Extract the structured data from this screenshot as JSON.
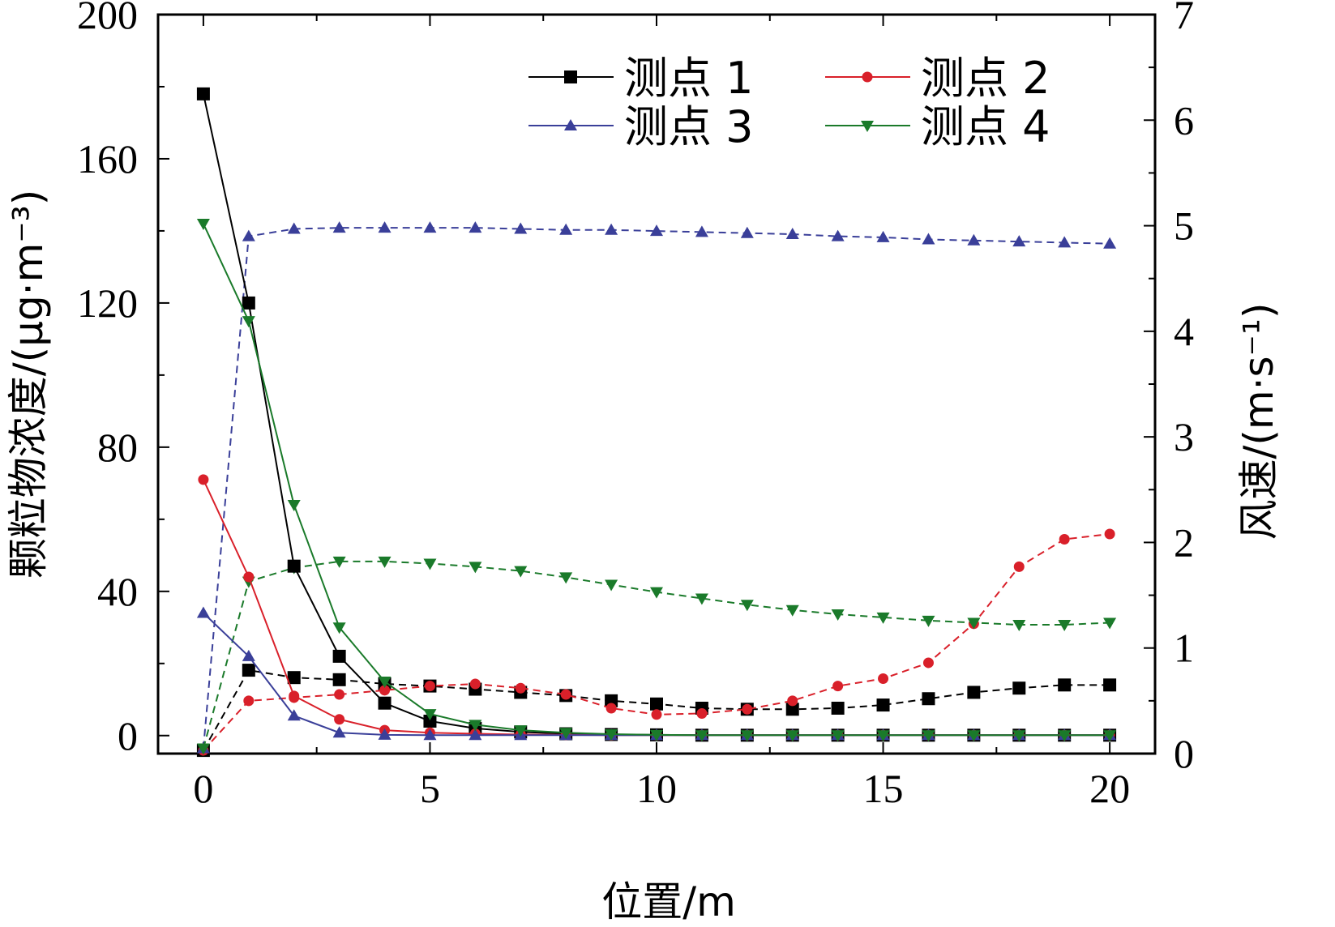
{
  "chart_data": {
    "type": "line",
    "xlabel": "位置/m",
    "ylabel_left": "颗粒物浓度/(μg·m⁻³)",
    "ylabel_right": "风速/(m·s⁻¹)",
    "xlim": [
      -1,
      21
    ],
    "ylim_left": [
      -5,
      200
    ],
    "ylim_right": [
      0,
      7
    ],
    "x_ticks": [
      0,
      5,
      10,
      15,
      20
    ],
    "y_left_ticks": [
      0,
      40,
      80,
      120,
      160,
      200
    ],
    "y_right_ticks": [
      0,
      1,
      2,
      3,
      4,
      5,
      6,
      7
    ],
    "legend_position": "top-right",
    "legend": [
      {
        "name": "测点 1",
        "color": "#000000",
        "marker": "square"
      },
      {
        "name": "测点 2",
        "color": "#d9202a",
        "marker": "circle"
      },
      {
        "name": "测点 3",
        "color": "#3a3f99",
        "marker": "triangle-up"
      },
      {
        "name": "测点 4",
        "color": "#1a7a2a",
        "marker": "triangle-down"
      }
    ],
    "x": [
      0,
      1,
      2,
      3,
      4,
      5,
      6,
      7,
      8,
      9,
      10,
      11,
      12,
      13,
      14,
      15,
      16,
      17,
      18,
      19,
      20
    ],
    "series": [
      {
        "name": "测点 1",
        "axis": "left",
        "style": "solid",
        "color": "#000000",
        "marker": "square",
        "values": [
          178,
          120,
          47,
          22,
          9,
          4,
          2,
          1,
          0.5,
          0.3,
          0.2,
          0.1,
          0.1,
          0.1,
          0.1,
          0.1,
          0.1,
          0.1,
          0.1,
          0.1,
          0.1
        ]
      },
      {
        "name": "测点 2",
        "axis": "left",
        "style": "solid",
        "color": "#d9202a",
        "marker": "circle",
        "values": [
          71,
          44,
          11,
          4.5,
          1.5,
          0.8,
          0.5,
          0.3,
          0.2,
          0.1,
          0.1,
          0.1,
          0.1,
          0.1,
          0.1,
          0.1,
          0.1,
          0.1,
          0.1,
          0.1,
          0.1
        ]
      },
      {
        "name": "测点 3",
        "axis": "left",
        "style": "solid",
        "color": "#3a3f99",
        "marker": "triangle-up",
        "values": [
          34,
          22,
          5.5,
          0.8,
          0.2,
          0.1,
          0.1,
          0.1,
          0.1,
          0.1,
          0.1,
          0.1,
          0.1,
          0.1,
          0.1,
          0.1,
          0.1,
          0.1,
          0.1,
          0.1,
          0.1
        ]
      },
      {
        "name": "测点 4",
        "axis": "left",
        "style": "solid",
        "color": "#1a7a2a",
        "marker": "triangle-down",
        "values": [
          142,
          115,
          64,
          30,
          15,
          6,
          3,
          1.5,
          0.8,
          0.4,
          0.2,
          0.1,
          0.1,
          0.1,
          0.1,
          0.1,
          0.1,
          0.1,
          0.1,
          0.1,
          0.1
        ]
      },
      {
        "name": "测点 1",
        "axis": "right",
        "style": "dashed",
        "color": "#000000",
        "marker": "square",
        "values": [
          0.03,
          0.79,
          0.72,
          0.7,
          0.66,
          0.64,
          0.61,
          0.58,
          0.55,
          0.5,
          0.47,
          0.43,
          0.42,
          0.42,
          0.43,
          0.46,
          0.52,
          0.58,
          0.62,
          0.65,
          0.65
        ]
      },
      {
        "name": "测点 2",
        "axis": "right",
        "style": "dashed",
        "color": "#d9202a",
        "marker": "circle",
        "values": [
          0.03,
          0.5,
          0.53,
          0.56,
          0.6,
          0.64,
          0.66,
          0.62,
          0.56,
          0.43,
          0.37,
          0.38,
          0.42,
          0.5,
          0.64,
          0.71,
          0.86,
          1.23,
          1.77,
          2.03,
          2.08
        ]
      },
      {
        "name": "测点 3",
        "axis": "right",
        "style": "dashed",
        "color": "#3a3f99",
        "marker": "triangle-up",
        "values": [
          0.05,
          4.9,
          4.97,
          4.98,
          4.98,
          4.98,
          4.98,
          4.97,
          4.96,
          4.96,
          4.95,
          4.94,
          4.93,
          4.92,
          4.9,
          4.89,
          4.87,
          4.86,
          4.85,
          4.84,
          4.83
        ]
      },
      {
        "name": "测点 4",
        "axis": "right",
        "style": "dashed",
        "color": "#1a7a2a",
        "marker": "triangle-down",
        "values": [
          0.05,
          1.63,
          1.76,
          1.82,
          1.82,
          1.8,
          1.77,
          1.73,
          1.67,
          1.6,
          1.53,
          1.47,
          1.41,
          1.36,
          1.32,
          1.29,
          1.26,
          1.24,
          1.22,
          1.22,
          1.24
        ]
      }
    ]
  }
}
